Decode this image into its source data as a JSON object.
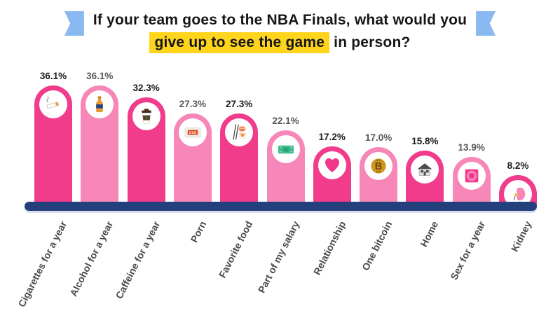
{
  "title": {
    "line1": "If your team goes to the NBA Finals, what would you",
    "line2_highlight": "give up to see the game",
    "line2_rest": " in person?"
  },
  "chart_data": {
    "type": "bar",
    "title": "If your team goes to the NBA Finals, what would you give up to see the game in person?",
    "categories": [
      "Cigarettes for a year",
      "Alcohol for a year",
      "Caffeine for a year",
      "Porn",
      "Favorite food",
      "Part of my salary",
      "Relationship",
      "One bitcoin",
      "Home",
      "Sex for a year",
      "Kidney"
    ],
    "values": [
      36.1,
      36.1,
      32.3,
      27.3,
      27.3,
      22.1,
      17.2,
      17.0,
      15.8,
      13.9,
      8.2
    ],
    "value_labels": [
      "36.1%",
      "36.1%",
      "32.3%",
      "27.3%",
      "27.3%",
      "22.1%",
      "17.2%",
      "17.0%",
      "15.8%",
      "13.9%",
      "8.2%"
    ],
    "icons": [
      "cigarette-icon",
      "beer-bottle-icon",
      "coffee-cup-icon",
      "porn-browser-icon",
      "sushi-icon",
      "money-bill-icon",
      "heart-icon",
      "bitcoin-icon",
      "house-icon",
      "condom-icon",
      "kidney-icon"
    ],
    "xlabel": "",
    "ylabel": "",
    "ylim": [
      0,
      40
    ],
    "grid": false,
    "legend": false,
    "bar_color_pattern": "alternating dark/light pink"
  },
  "colors": {
    "bar_dark": "#f03c8b",
    "bar_light": "#f687b8",
    "baseline_navy": "#23407c",
    "baseline_shadow": "#d8dcf0",
    "ribbon_blue": "#8ab9f1",
    "highlight_yellow": "#ffd41d",
    "value_label_dark": "#1c1c1e",
    "value_label_gray": "#58585a",
    "axis_label_gray": "#4a4a4c"
  }
}
